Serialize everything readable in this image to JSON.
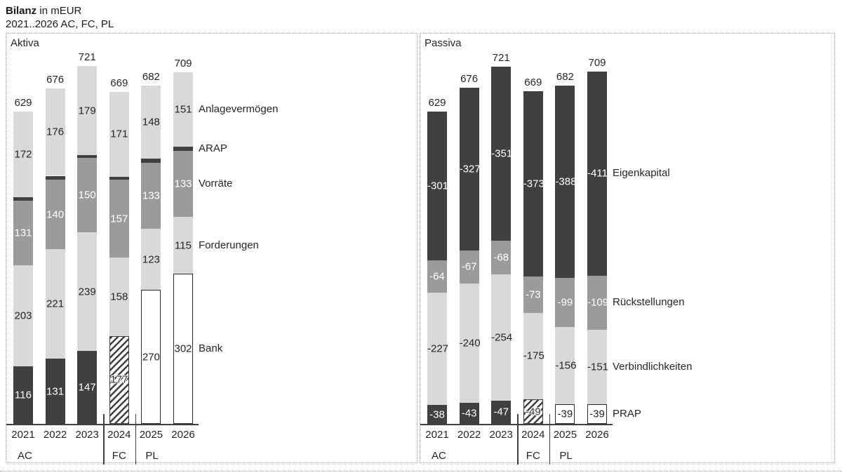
{
  "header": {
    "title_bold": "Bilanz",
    "title_suffix": " in mEUR",
    "subtitle": "2021..2026 AC, FC, PL"
  },
  "colors": {
    "dark": "#404040",
    "mid": "#9B9B9B",
    "light": "#D9D9D9",
    "white": "#FFFFFF",
    "text": "#262626",
    "panel_border": "#9A9A9A"
  },
  "years": [
    {
      "label": "2021",
      "scenario": "AC"
    },
    {
      "label": "2022",
      "scenario": "AC"
    },
    {
      "label": "2023",
      "scenario": "AC"
    },
    {
      "label": "2024",
      "scenario": "FC"
    },
    {
      "label": "2025",
      "scenario": "PL"
    },
    {
      "label": "2026",
      "scenario": "PL"
    }
  ],
  "scenario_axis": [
    {
      "label": "AC",
      "bar": 0,
      "align": "left"
    },
    {
      "label": "FC",
      "bar": 3,
      "align": "center"
    },
    {
      "label": "PL",
      "bar": 4,
      "align": "left"
    }
  ],
  "chart_data": [
    {
      "type": "bar",
      "stacked": true,
      "panel_title": "Aktiva",
      "categories": [
        "2021",
        "2022",
        "2023",
        "2024",
        "2025",
        "2026"
      ],
      "totals": [
        629,
        676,
        721,
        669,
        682,
        709
      ],
      "legend_position": "right-of-last-bar",
      "series_bottom_to_top": [
        {
          "name": "Bank",
          "role": "scenario",
          "values": [
            116,
            131,
            147,
            177,
            270,
            302
          ]
        },
        {
          "name": "Forderungen",
          "role": "light",
          "values": [
            203,
            221,
            239,
            158,
            123,
            115
          ]
        },
        {
          "name": "Vorräte",
          "role": "mid",
          "values": [
            131,
            140,
            150,
            157,
            133,
            133
          ]
        },
        {
          "name": "ARAP",
          "role": "dark",
          "values": [
            7,
            8,
            6,
            6,
            8,
            8
          ],
          "value_labels_visible": false
        },
        {
          "name": "Anlagevermögen",
          "role": "light",
          "values": [
            172,
            176,
            179,
            171,
            148,
            151
          ]
        }
      ]
    },
    {
      "type": "bar",
      "stacked": true,
      "panel_title": "Passiva",
      "categories": [
        "2021",
        "2022",
        "2023",
        "2024",
        "2025",
        "2026"
      ],
      "totals": [
        629,
        676,
        721,
        669,
        682,
        709
      ],
      "legend_position": "right-of-last-bar",
      "series_bottom_to_top": [
        {
          "name": "PRAP",
          "role": "scenario",
          "values": [
            -38,
            -43,
            -47,
            -49,
            -39,
            -39
          ]
        },
        {
          "name": "Verbindlichkeiten",
          "role": "light",
          "values": [
            -227,
            -240,
            -254,
            -175,
            -156,
            -151
          ]
        },
        {
          "name": "Rückstellungen",
          "role": "mid",
          "values": [
            -64,
            -67,
            -68,
            -73,
            -99,
            -109
          ]
        },
        {
          "name": "Eigenkapital",
          "role": "dark",
          "values": [
            -301,
            -327,
            -351,
            -373,
            -388,
            -411
          ]
        }
      ]
    }
  ]
}
